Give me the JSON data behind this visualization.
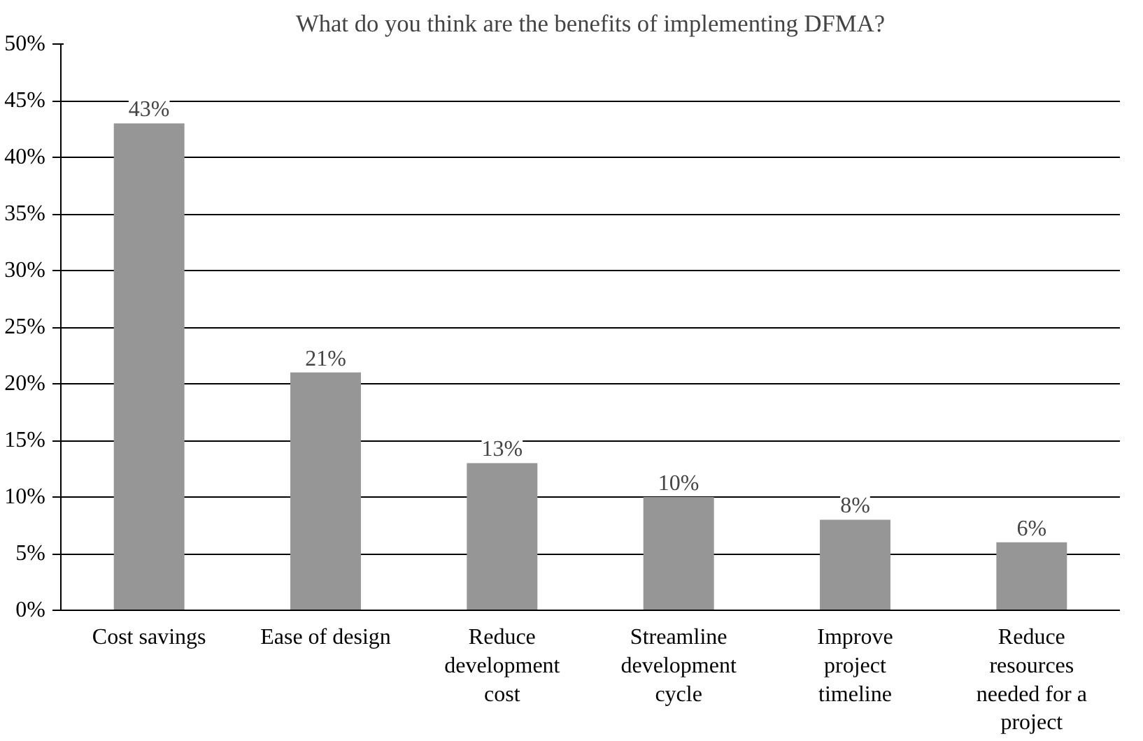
{
  "chart_data": {
    "type": "bar",
    "title": "What do you think are the benefits of implementing DFMA?",
    "categories": [
      "Cost savings",
      "Ease of design",
      "Reduce development cost",
      "Streamline development cycle",
      "Improve project timeline",
      "Reduce resources needed for a project"
    ],
    "values": [
      43,
      21,
      13,
      10,
      8,
      6
    ],
    "value_labels": [
      "43%",
      "21%",
      "13%",
      "10%",
      "8%",
      "6%"
    ],
    "color": "#969696",
    "ylim": [
      0,
      50
    ],
    "yticks": [
      {
        "value": 0,
        "label": "0%"
      },
      {
        "value": 5,
        "label": "5%"
      },
      {
        "value": 10,
        "label": "10%"
      },
      {
        "value": 15,
        "label": "15%"
      },
      {
        "value": 20,
        "label": "20%"
      },
      {
        "value": 25,
        "label": "25%"
      },
      {
        "value": 30,
        "label": "30%"
      },
      {
        "value": 35,
        "label": "35%"
      },
      {
        "value": 40,
        "label": "40%"
      },
      {
        "value": 45,
        "label": "45%"
      },
      {
        "value": 50,
        "label": "50%"
      }
    ],
    "grid": "y"
  }
}
